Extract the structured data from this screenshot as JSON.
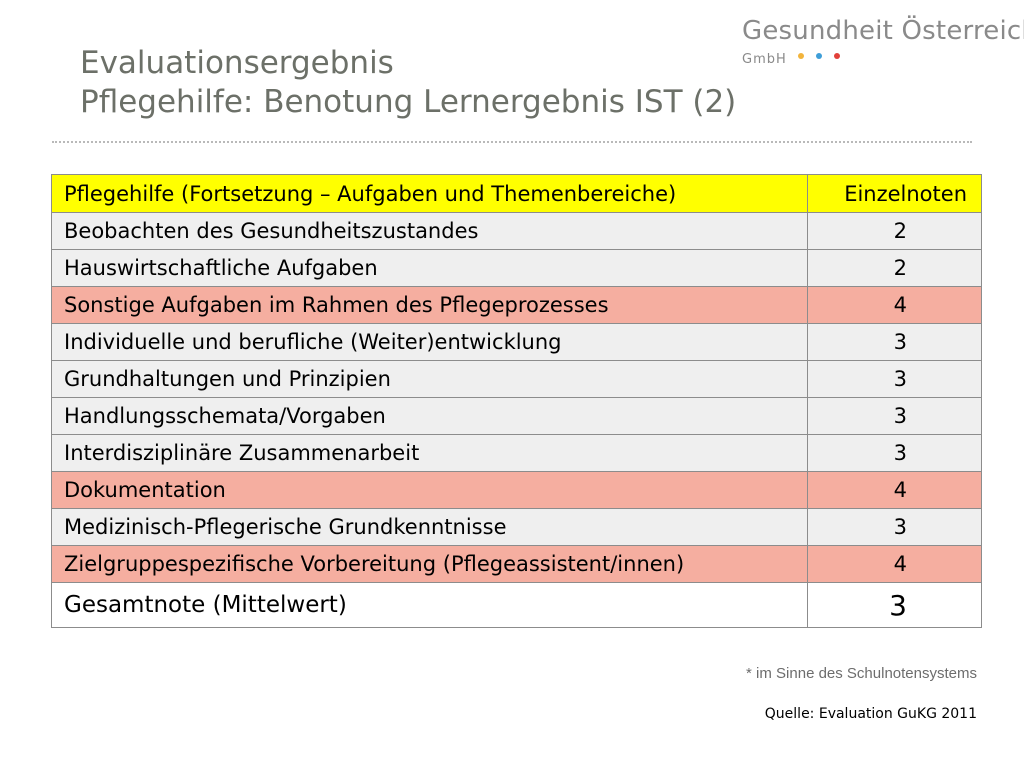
{
  "title": {
    "line1": "Evaluationsergebnis",
    "line2": "Pflegehilfe: Benotung Lernergebnis IST (2)"
  },
  "logo": {
    "name": "Gesundheit Österreich",
    "sub": "GmbH",
    "dot_colors": [
      "#f2b43c",
      "#3e9ed8",
      "#e2403a"
    ]
  },
  "table": {
    "header": {
      "topic": "Pflegehilfe (Fortsetzung – Aufgaben und Themenbereiche)",
      "grade": "Einzelnoten"
    },
    "rows": [
      {
        "topic": "Beobachten des Gesundheitszustandes",
        "grade": "2"
      },
      {
        "topic": "Hauswirtschaftliche Aufgaben",
        "grade": "2"
      },
      {
        "topic": "Sonstige Aufgaben im Rahmen des Pflegeprozesses",
        "grade": "4"
      },
      {
        "topic": "Individuelle und berufliche (Weiter)entwicklung",
        "grade": "3"
      },
      {
        "topic": "Grundhaltungen und Prinzipien",
        "grade": "3"
      },
      {
        "topic": "Handlungsschemata/Vorgaben",
        "grade": "3"
      },
      {
        "topic": "Interdisziplinäre Zusammenarbeit",
        "grade": "3"
      },
      {
        "topic": "Dokumentation",
        "grade": "4"
      },
      {
        "topic": "Medizinisch-Pflegerische Grundkenntnisse",
        "grade": "3"
      },
      {
        "topic": "Zielgruppespezifische Vorbereitung (Pflegeassistent/innen)",
        "grade": "4"
      }
    ],
    "total": {
      "label": "Gesamtnote (Mittelwert)",
      "grade": "3"
    },
    "colors": {
      "header": "#ffff00",
      "plain": "#efefef",
      "highlight": "#f5aea0"
    }
  },
  "footnote": "* im Sinne des Schulnotensystems",
  "source": "Quelle: Evaluation GuKG 2011"
}
